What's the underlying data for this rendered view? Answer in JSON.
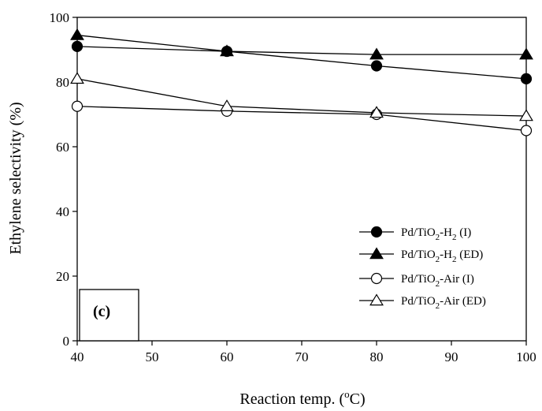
{
  "chart_data": {
    "type": "line",
    "xlabel": {
      "main": "Reaction temp. (",
      "sup": "o",
      "tail": "C)"
    },
    "ylabel": "Ethylene selectivity (%)",
    "xlim": [
      40,
      100
    ],
    "ylim": [
      0,
      100
    ],
    "x_ticks": [
      40,
      50,
      60,
      70,
      80,
      90,
      100
    ],
    "y_ticks": [
      0,
      20,
      40,
      60,
      80,
      100
    ],
    "x": [
      40,
      60,
      80,
      100
    ],
    "grid": false,
    "legend_position": "lower-right",
    "panel_label": "(c)",
    "series": [
      {
        "name": "Pd/TiO2-H2 (I)",
        "name_parts": [
          "Pd/TiO",
          "2",
          "-H",
          "2",
          " (I)"
        ],
        "marker": "circle-filled",
        "values": [
          91,
          89.5,
          85,
          81
        ]
      },
      {
        "name": "Pd/TiO2-H2 (ED)",
        "name_parts": [
          "Pd/TiO",
          "2",
          "-H",
          "2",
          " (ED)"
        ],
        "marker": "triangle-filled",
        "values": [
          94.5,
          89.5,
          88.5,
          88.5
        ]
      },
      {
        "name": "Pd/TiO2-Air (I)",
        "name_parts": [
          "Pd/TiO",
          "2",
          "-Air (I)"
        ],
        "marker": "circle-open",
        "values": [
          72.5,
          71,
          70,
          65
        ]
      },
      {
        "name": "Pd/TiO2-Air (ED)",
        "name_parts": [
          "Pd/TiO",
          "2",
          "-Air (ED)"
        ],
        "marker": "triangle-open",
        "values": [
          81,
          72.5,
          70.5,
          69.5
        ]
      }
    ]
  }
}
